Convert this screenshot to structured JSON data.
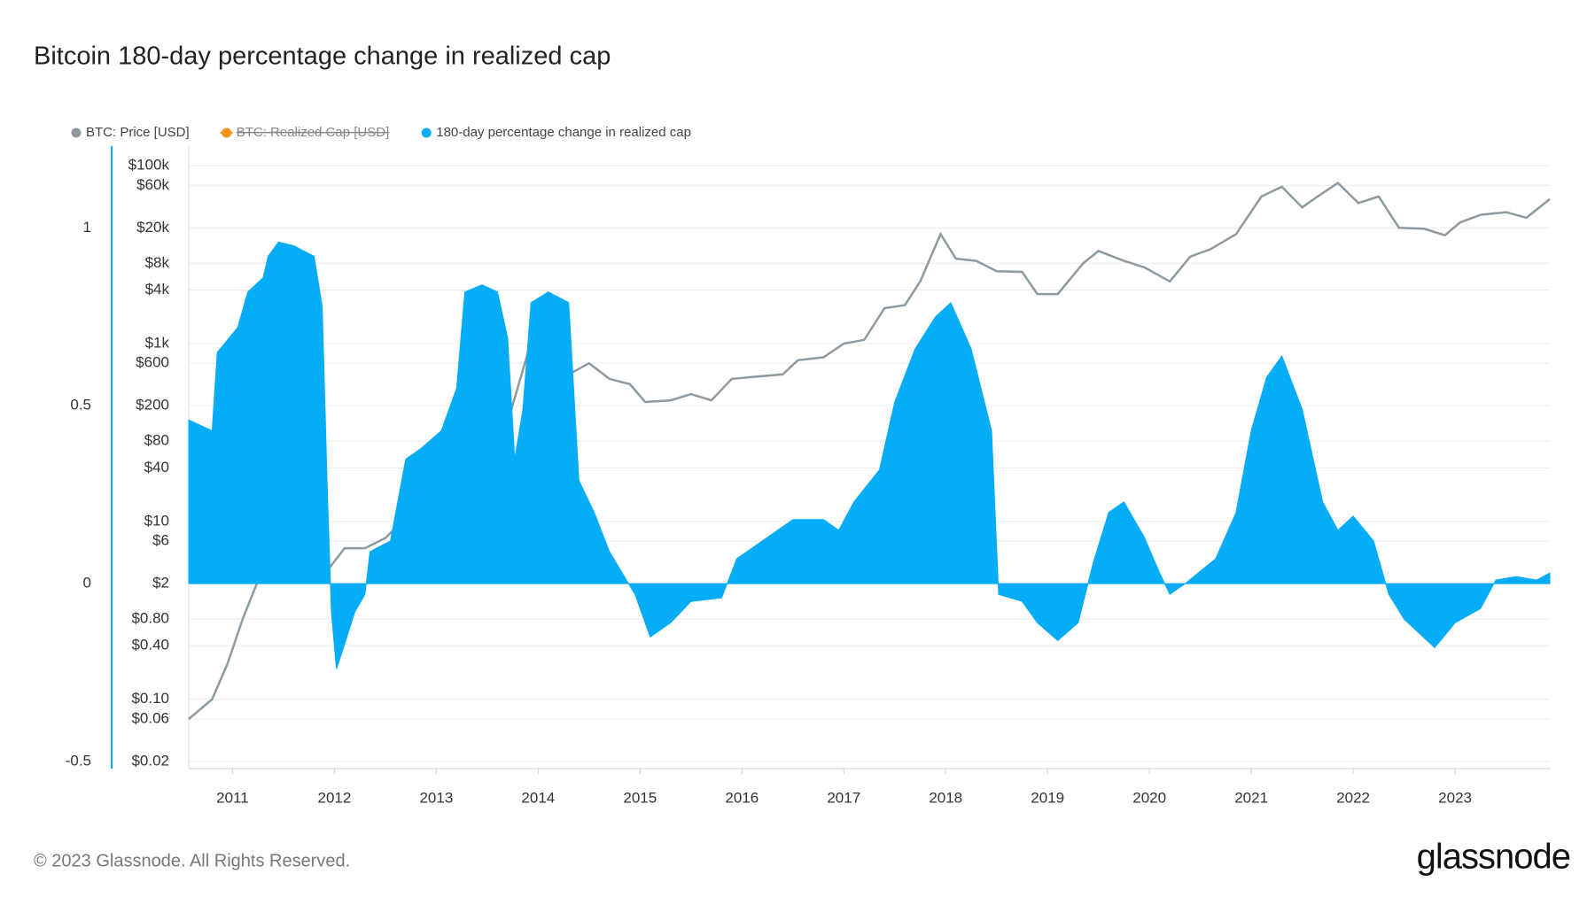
{
  "chart_data": {
    "type": "line-area",
    "title": "Bitcoin 180-day percentage change in realized cap",
    "footer": "© 2023 Glassnode. All Rights Reserved.",
    "brand": "glassnode",
    "xlim": [
      2010.57,
      2023.93
    ],
    "xticks": [
      2011,
      2012,
      2013,
      2014,
      2015,
      2016,
      2017,
      2018,
      2019,
      2020,
      2021,
      2022,
      2023
    ],
    "ylim": [
      -0.52,
      1.23
    ],
    "yticks": [
      -0.5,
      0,
      0.5,
      1
    ],
    "y2lim": [
      0.0166,
      166000
    ],
    "y2scale": "log",
    "y2ticks": [
      {
        "value": 0.02,
        "label": "$0.02"
      },
      {
        "value": 0.06,
        "label": "$0.06"
      },
      {
        "value": 0.1,
        "label": "$0.10"
      },
      {
        "value": 0.4,
        "label": "$0.40"
      },
      {
        "value": 0.8,
        "label": "$0.80"
      },
      {
        "value": 2,
        "label": "$2"
      },
      {
        "value": 6,
        "label": "$6"
      },
      {
        "value": 10,
        "label": "$10"
      },
      {
        "value": 40,
        "label": "$40"
      },
      {
        "value": 80,
        "label": "$80"
      },
      {
        "value": 200,
        "label": "$200"
      },
      {
        "value": 600,
        "label": "$600"
      },
      {
        "value": 1000,
        "label": "$1k"
      },
      {
        "value": 4000,
        "label": "$4k"
      },
      {
        "value": 8000,
        "label": "$8k"
      },
      {
        "value": 20000,
        "label": "$20k"
      },
      {
        "value": 60000,
        "label": "$60k"
      },
      {
        "value": 100000,
        "label": "$100k"
      }
    ],
    "grid": true,
    "legend": "top-left",
    "series": [
      {
        "name": "BTC: Price [USD]",
        "color": "#8d9aa0",
        "axis": "y2",
        "kind": "line",
        "x": [
          2010.57,
          2010.8,
          2010.95,
          2011.1,
          2011.3,
          2011.45,
          2011.6,
          2011.8,
          2011.95,
          2012.1,
          2012.3,
          2012.5,
          2012.7,
          2012.9,
          2013.1,
          2013.3,
          2013.5,
          2013.7,
          2013.9,
          2014.1,
          2014.3,
          2014.5,
          2014.7,
          2014.9,
          2015.05,
          2015.3,
          2015.5,
          2015.7,
          2015.9,
          2016.1,
          2016.4,
          2016.55,
          2016.8,
          2017.0,
          2017.2,
          2017.4,
          2017.6,
          2017.75,
          2017.95,
          2018.1,
          2018.3,
          2018.5,
          2018.75,
          2018.9,
          2019.1,
          2019.35,
          2019.5,
          2019.75,
          2019.95,
          2020.2,
          2020.4,
          2020.6,
          2020.85,
          2021.1,
          2021.3,
          2021.5,
          2021.65,
          2021.85,
          2022.05,
          2022.25,
          2022.45,
          2022.7,
          2022.9,
          2023.05,
          2023.25,
          2023.5,
          2023.7,
          2023.93
        ],
        "values": [
          0.06,
          0.1,
          0.25,
          0.8,
          3,
          20,
          12,
          4,
          3,
          5,
          5,
          6.5,
          11,
          13,
          25,
          120,
          90,
          130,
          800,
          700,
          450,
          600,
          400,
          350,
          220,
          230,
          270,
          230,
          400,
          420,
          450,
          650,
          700,
          1000,
          1100,
          2500,
          2700,
          5000,
          17000,
          9000,
          8500,
          6500,
          6400,
          3600,
          3600,
          8000,
          11000,
          8500,
          7200,
          5000,
          9500,
          11500,
          17000,
          45000,
          58000,
          34000,
          45000,
          64000,
          38000,
          45000,
          20000,
          19500,
          16500,
          23000,
          28000,
          30000,
          26000,
          42000
        ]
      },
      {
        "name": "BTC: Realized Cap [USD]",
        "color": "#f7931a",
        "visible": false
      },
      {
        "name": "180-day percentage change in realized cap",
        "color": "#05acf8",
        "axis": "y",
        "kind": "area",
        "x": [
          2010.57,
          2010.8,
          2010.85,
          2011.05,
          2011.15,
          2011.3,
          2011.35,
          2011.45,
          2011.6,
          2011.8,
          2011.88,
          2011.93,
          2011.97,
          2012.02,
          2012.1,
          2012.2,
          2012.3,
          2012.35,
          2012.55,
          2012.7,
          2012.85,
          2013.05,
          2013.2,
          2013.28,
          2013.45,
          2013.6,
          2013.7,
          2013.77,
          2013.85,
          2013.93,
          2014.1,
          2014.3,
          2014.4,
          2014.55,
          2014.7,
          2014.95,
          2015.1,
          2015.3,
          2015.5,
          2015.8,
          2015.95,
          2016.2,
          2016.5,
          2016.8,
          2016.95,
          2017.1,
          2017.35,
          2017.5,
          2017.7,
          2017.9,
          2018.05,
          2018.25,
          2018.45,
          2018.52,
          2018.75,
          2018.9,
          2019.1,
          2019.3,
          2019.45,
          2019.6,
          2019.75,
          2019.95,
          2020.1,
          2020.2,
          2020.35,
          2020.65,
          2020.85,
          2021.0,
          2021.15,
          2021.3,
          2021.5,
          2021.7,
          2021.85,
          2022.0,
          2022.2,
          2022.35,
          2022.5,
          2022.8,
          2023.0,
          2023.25,
          2023.4,
          2023.6,
          2023.8,
          2023.93
        ],
        "values": [
          0.46,
          0.43,
          0.65,
          0.72,
          0.82,
          0.86,
          0.92,
          0.96,
          0.95,
          0.92,
          0.78,
          0.26,
          -0.08,
          -0.24,
          -0.17,
          -0.08,
          -0.03,
          0.09,
          0.12,
          0.35,
          0.38,
          0.43,
          0.55,
          0.82,
          0.84,
          0.82,
          0.69,
          0.35,
          0.49,
          0.79,
          0.82,
          0.79,
          0.29,
          0.2,
          0.09,
          -0.03,
          -0.15,
          -0.11,
          -0.05,
          -0.04,
          0.07,
          0.12,
          0.18,
          0.18,
          0.15,
          0.23,
          0.32,
          0.51,
          0.66,
          0.75,
          0.79,
          0.66,
          0.43,
          -0.03,
          -0.05,
          -0.11,
          -0.16,
          -0.11,
          0.06,
          0.2,
          0.23,
          0.13,
          0.03,
          -0.03,
          0,
          0.07,
          0.2,
          0.43,
          0.58,
          0.64,
          0.49,
          0.23,
          0.15,
          0.19,
          0.12,
          -0.03,
          -0.1,
          -0.18,
          -0.11,
          -0.07,
          0.01,
          0.02,
          0.01,
          0.03
        ]
      }
    ]
  }
}
